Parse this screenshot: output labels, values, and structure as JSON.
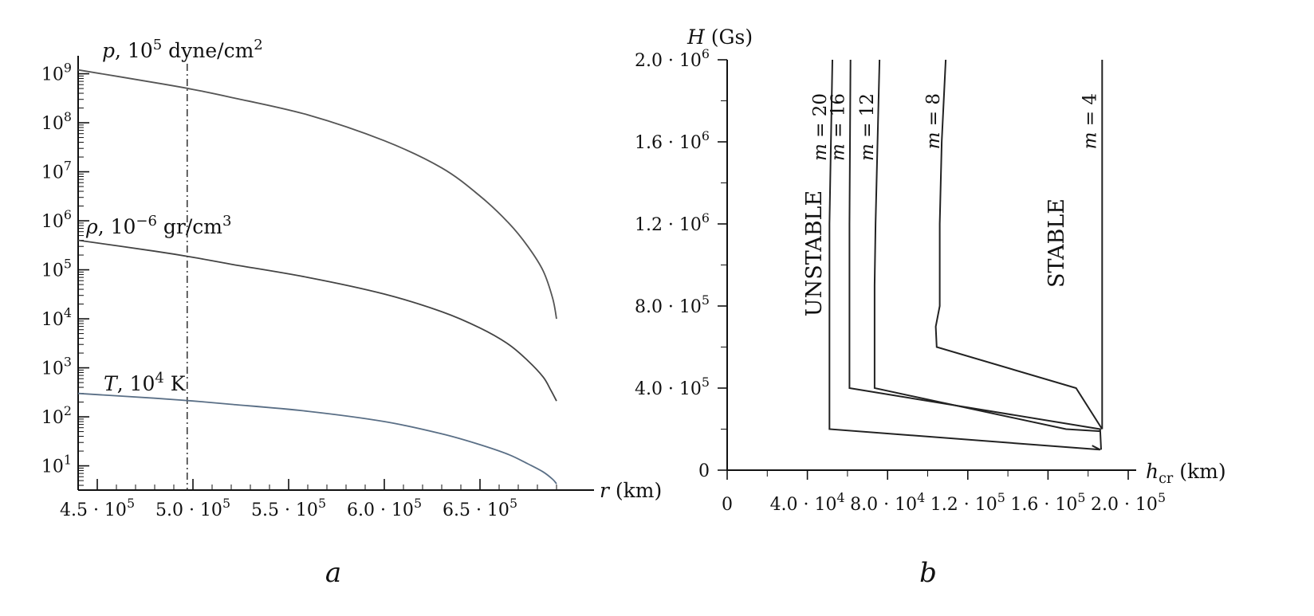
{
  "panels": {
    "a": "a",
    "b": "b"
  },
  "chart_data": [
    {
      "type": "line",
      "panel": "a",
      "xlabel": "r (km)",
      "ylabel": "",
      "xlim": [
        440000,
        695000
      ],
      "x_ticks": [
        450000,
        500000,
        550000,
        600000,
        650000
      ],
      "x_tick_labels": [
        "4.5 · 10^5",
        "5.0 · 10^5",
        "5.5 · 10^5",
        "6.0 · 10^5",
        "6.5 · 10^5"
      ],
      "y_scale": "log",
      "ylim": [
        3.2,
        1600000000
      ],
      "y_ticks": [
        10,
        100,
        1000,
        10000,
        100000,
        1000000,
        10000000,
        100000000,
        1000000000
      ],
      "y_tick_labels": [
        "10^1",
        "10^2",
        "10^3",
        "10^4",
        "10^5",
        "10^6",
        "10^7",
        "10^8",
        "10^9"
      ],
      "vline_x": 497000,
      "grid": false,
      "series": [
        {
          "name": "p, 10^5 dyne/cm^2",
          "color": "#555555",
          "x": [
            440000,
            480000,
            500000,
            520000,
            560000,
            600000,
            630000,
            650000,
            665000,
            675000,
            683000,
            688000,
            690000
          ],
          "y": [
            1200000000,
            660000000,
            480000000,
            330000000,
            145000000,
            43000000,
            12000000,
            3200000,
            900000,
            300000,
            95000,
            26000,
            10000
          ]
        },
        {
          "name": "ρ, 10^-6 gr/cm^3",
          "color": "#444444",
          "x": [
            440000,
            480000,
            500000,
            520000,
            560000,
            600000,
            630000,
            650000,
            665000,
            675000,
            683000,
            687000,
            690000
          ],
          "y": [
            400000,
            240000,
            180000,
            130000,
            70000,
            32000,
            14000,
            6500,
            3000,
            1400,
            650,
            350,
            210
          ]
        },
        {
          "name": "T, 10^4 K",
          "color": "#5a6f86",
          "x": [
            440000,
            480000,
            500000,
            520000,
            560000,
            600000,
            630000,
            650000,
            665000,
            675000,
            683000,
            688000,
            690000
          ],
          "y": [
            300,
            240,
            210,
            180,
            130,
            80,
            45,
            27,
            17,
            11,
            7.5,
            5.3,
            4.3
          ]
        }
      ]
    },
    {
      "type": "line",
      "panel": "b",
      "xlabel": "h_cr (km)",
      "ylabel": "H (Gs)",
      "xlim": [
        0,
        200000
      ],
      "ylim": [
        0,
        2000000
      ],
      "x_ticks": [
        0,
        40000,
        80000,
        120000,
        160000,
        200000
      ],
      "x_tick_labels": [
        "0",
        "4.0 · 10^4",
        "8.0 · 10^4",
        "1.2 · 10^5",
        "1.6 · 10^5",
        "2.0 · 10^5"
      ],
      "y_ticks": [
        0,
        400000,
        800000,
        1200000,
        1600000,
        2000000
      ],
      "y_tick_labels": [
        "0",
        "4.0 · 10^5",
        "8.0 · 10^5",
        "1.2 · 10^6",
        "1.6 · 10^6",
        "2.0 · 10^6"
      ],
      "grid": false,
      "annotations": [
        {
          "text": "UNSTABLE",
          "x": 27000,
          "y": 1100000
        },
        {
          "text": "STABLE",
          "x": 143000,
          "y": 1140000
        }
      ],
      "series": [
        {
          "name": "m = 20",
          "color": "#222222",
          "x": [
            52500,
            51000,
            51000,
            51000,
            186000,
            182000
          ],
          "y": [
            2000000,
            1200000,
            700000,
            200000,
            100000,
            120000
          ]
        },
        {
          "name": "m = 16",
          "color": "#222222",
          "x": [
            61500,
            61000,
            61000,
            186000,
            186500
          ],
          "y": [
            2000000,
            1200000,
            400000,
            200000,
            100000
          ]
        },
        {
          "name": "m = 12",
          "color": "#222222",
          "x": [
            76000,
            74000,
            73500,
            73500,
            169000,
            186000
          ],
          "y": [
            2000000,
            1200000,
            900000,
            400000,
            200000,
            190000
          ]
        },
        {
          "name": "m = 8",
          "color": "#222222",
          "x": [
            109000,
            107000,
            106000,
            106000,
            104000,
            104500,
            174000,
            187000
          ],
          "y": [
            2000000,
            1600000,
            1200000,
            800000,
            700000,
            600000,
            400000,
            200000
          ]
        },
        {
          "name": "m = 4",
          "color": "#222222",
          "x": [
            187000,
            187000
          ],
          "y": [
            2000000,
            200000
          ]
        }
      ]
    }
  ]
}
